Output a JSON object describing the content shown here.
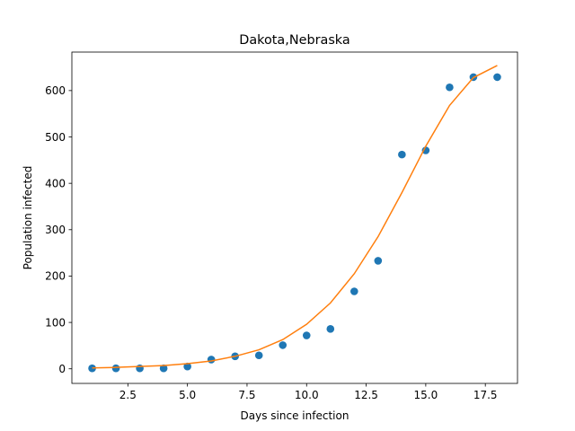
{
  "chart_data": {
    "type": "scatter",
    "title": "Dakota,Nebraska",
    "xlabel": "Days since infection",
    "ylabel": "Population infected",
    "xlim": [
      0.15,
      18.85
    ],
    "ylim": [
      -31.5,
      683
    ],
    "grid": false,
    "legend": "none",
    "xticks": [
      2.5,
      5.0,
      7.5,
      10.0,
      12.5,
      15.0,
      17.5
    ],
    "xtick_labels": [
      "2.5",
      "5.0",
      "7.5",
      "10.0",
      "12.5",
      "15.0",
      "17.5"
    ],
    "yticks": [
      0,
      100,
      200,
      300,
      400,
      500,
      600
    ],
    "ytick_labels": [
      "0",
      "100",
      "200",
      "300",
      "400",
      "500",
      "600"
    ],
    "series": [
      {
        "kind": "scatter",
        "color": "#1f77b4",
        "x": [
          1,
          2,
          3,
          4,
          5,
          6,
          7,
          8,
          9,
          10,
          11,
          12,
          13,
          14,
          15,
          16,
          17,
          18
        ],
        "y": [
          1,
          1,
          1,
          1,
          5,
          20,
          27,
          29,
          51,
          72,
          86,
          167,
          233,
          462,
          471,
          607,
          629,
          629
        ]
      },
      {
        "kind": "line",
        "color": "#ff7f0e",
        "x": [
          1,
          2,
          3,
          4,
          5,
          6,
          7,
          8,
          9,
          10,
          11,
          12,
          13,
          14,
          15,
          16,
          17,
          18
        ],
        "y": [
          2,
          3,
          5,
          7,
          11,
          17,
          27,
          41,
          63,
          96,
          142,
          205,
          285,
          380,
          480,
          568,
          628,
          654
        ]
      }
    ]
  }
}
